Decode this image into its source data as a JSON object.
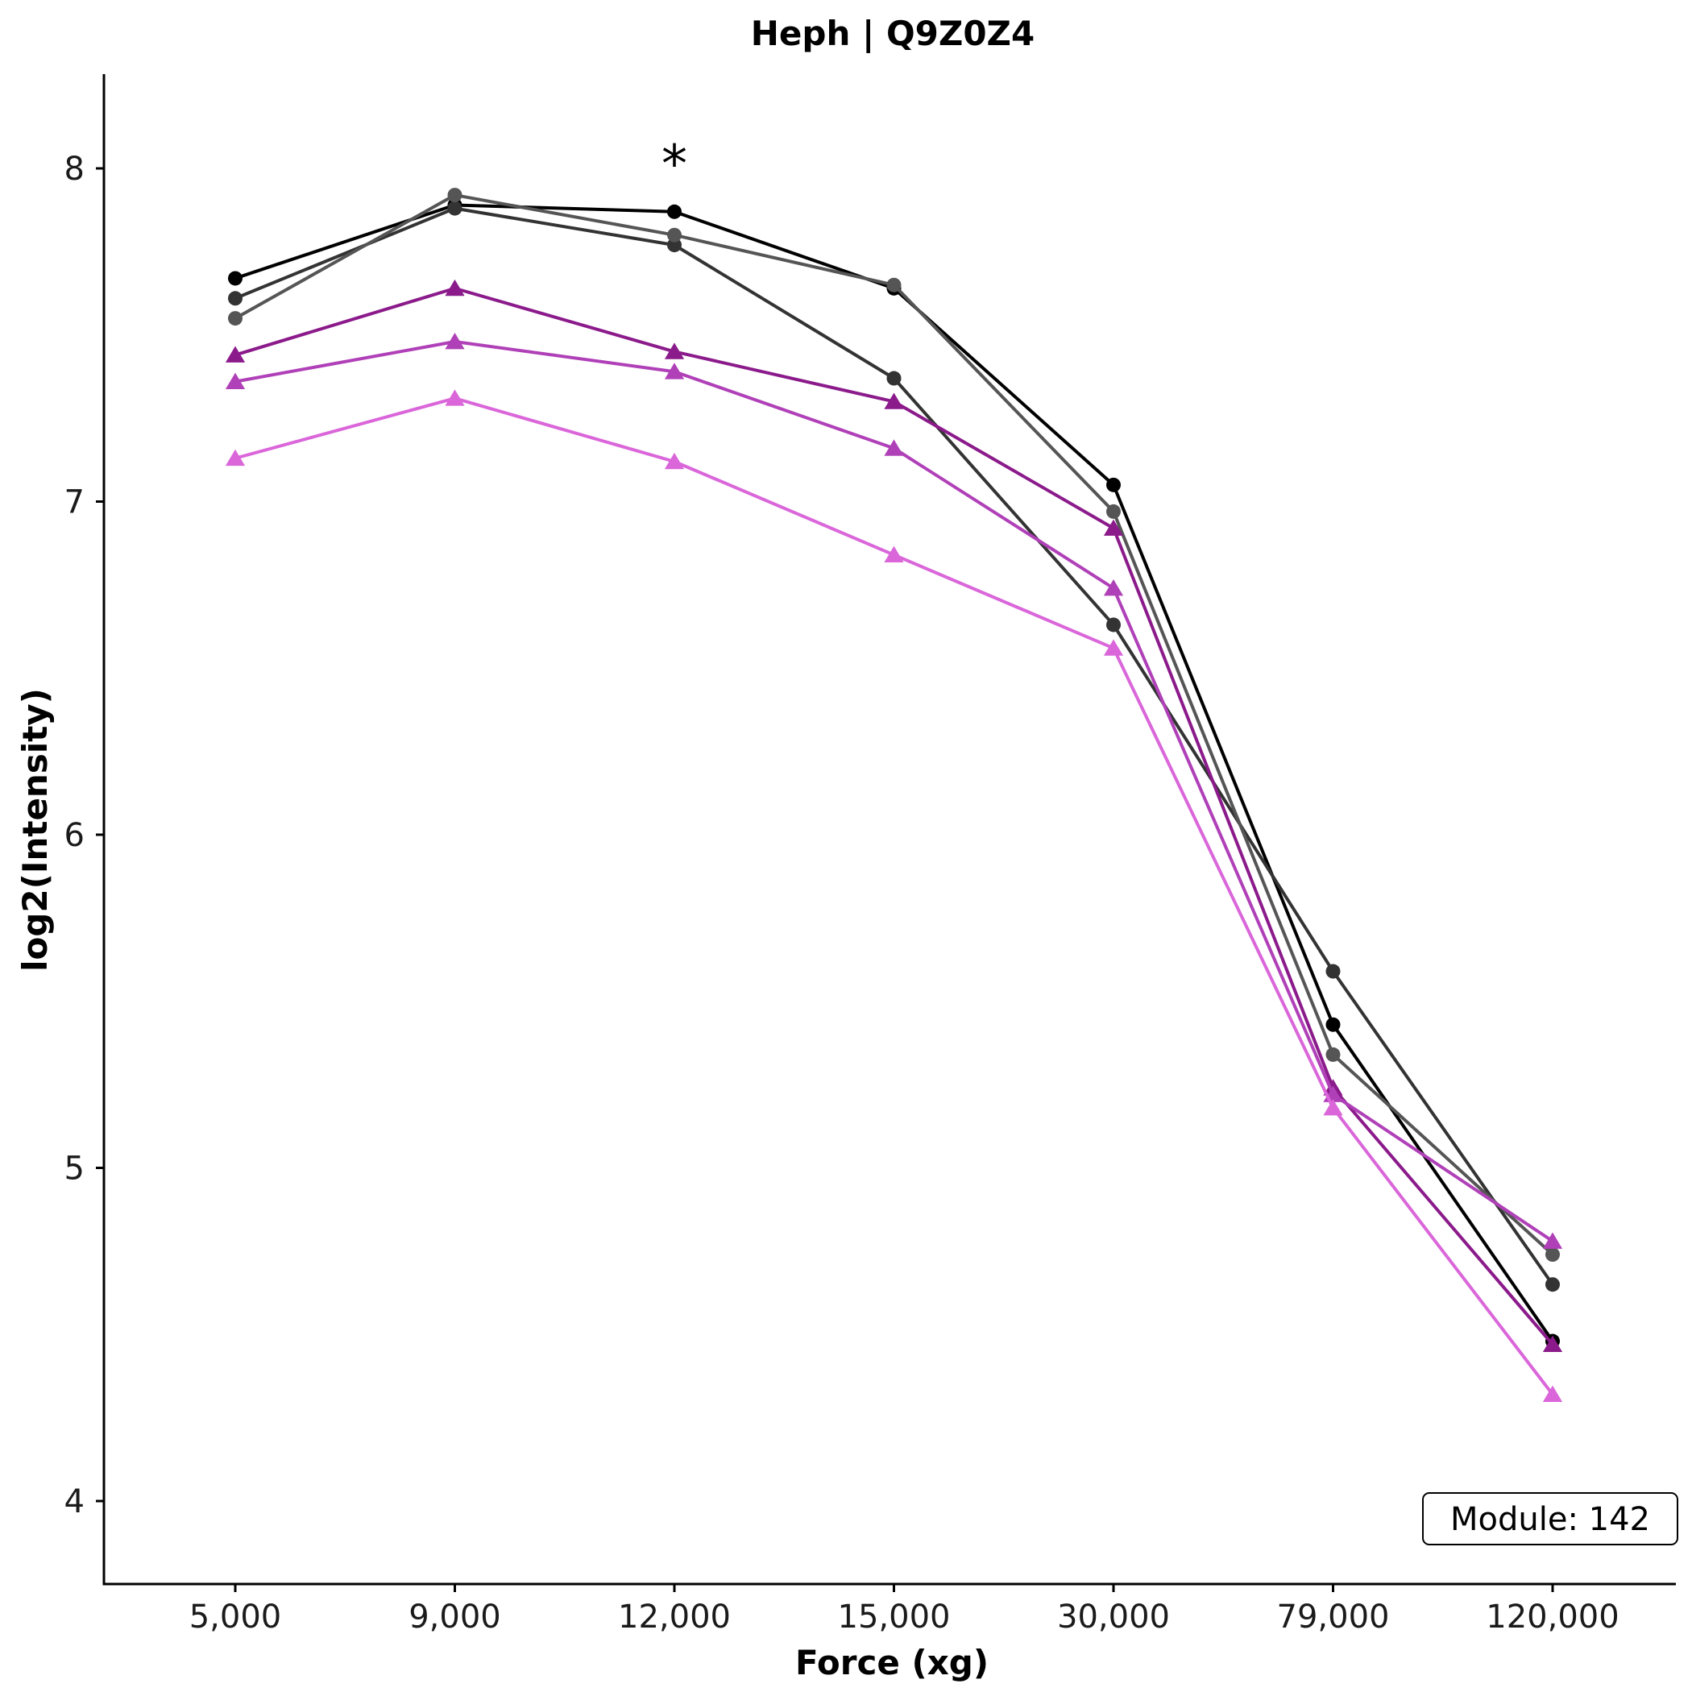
{
  "chart_data": {
    "type": "line",
    "title": "Heph | Q9Z0Z4",
    "xlabel": "Force (xg)",
    "ylabel": "log2(Intensity)",
    "categories": [
      "5,000",
      "9,000",
      "12,000",
      "15,000",
      "30,000",
      "79,000",
      "120,000"
    ],
    "y_ticks": [
      "4",
      "5",
      "6",
      "7",
      "8"
    ],
    "ylim": [
      3.75,
      8.3
    ],
    "grid": false,
    "legend": "none",
    "annotation": {
      "text": "*",
      "category": "12,000",
      "y": 8.1
    },
    "module_label": "Module: 142",
    "series": [
      {
        "marker": "circle",
        "color": "#000000",
        "values": [
          7.67,
          7.89,
          7.87,
          7.64,
          7.05,
          5.43,
          4.48
        ]
      },
      {
        "marker": "circle",
        "color": "#333333",
        "values": [
          7.61,
          7.88,
          7.77,
          7.37,
          6.63,
          5.59,
          4.65
        ]
      },
      {
        "marker": "circle",
        "color": "#555555",
        "values": [
          7.55,
          7.92,
          7.8,
          7.65,
          6.97,
          5.34,
          4.74
        ]
      },
      {
        "marker": "triangle",
        "color": "#8B1A8B",
        "values": [
          7.44,
          7.64,
          7.45,
          7.3,
          6.92,
          5.24,
          4.47
        ]
      },
      {
        "marker": "triangle",
        "color": "#B040B8",
        "values": [
          7.36,
          7.48,
          7.39,
          7.16,
          6.74,
          5.22,
          4.78
        ]
      },
      {
        "marker": "triangle",
        "color": "#DA66DA",
        "values": [
          7.13,
          7.31,
          7.12,
          6.84,
          6.56,
          5.18,
          4.32
        ]
      }
    ]
  }
}
